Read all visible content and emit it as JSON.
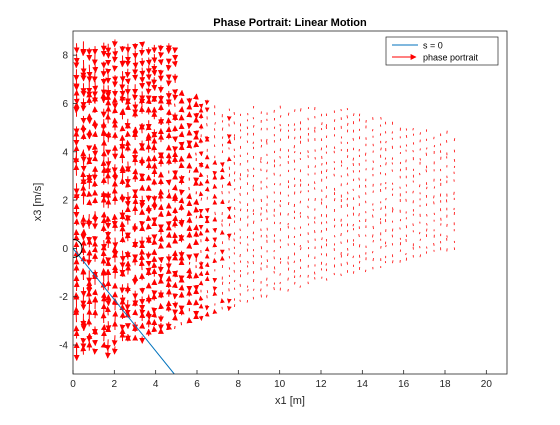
{
  "chart_data": {
    "type": "quiver",
    "title": "Phase Portrait: Linear Motion",
    "xlabel": "x1 [m]",
    "ylabel": "x3 [m/s]",
    "xlim": [
      0,
      21
    ],
    "ylim": [
      -5.2,
      9
    ],
    "xticks": [
      "0",
      "2",
      "4",
      "6",
      "8",
      "10",
      "12",
      "14",
      "16",
      "18",
      "20"
    ],
    "yticks": [
      "-4",
      "-2",
      "0",
      "2",
      "4",
      "6",
      "8"
    ],
    "grid": false,
    "legend": {
      "placement": "top-right",
      "entries": [
        "s = 0",
        "phase portrait"
      ]
    },
    "series": [
      {
        "name": "s = 0",
        "kind": "line",
        "color": "#0072BD",
        "x": [
          0,
          4.9
        ],
        "y": [
          0,
          -5.2
        ]
      },
      {
        "name": "phase portrait",
        "kind": "quiver",
        "color": "#FF0000",
        "x_range": [
          0,
          18.7
        ],
        "y_range": [
          -4.5,
          8.6
        ],
        "note_shape": "arrows shorten and fade to dots as x1 grows"
      }
    ],
    "annotations": [
      {
        "kind": "circle-marker",
        "x": 0,
        "y": 0
      }
    ]
  },
  "colors": {
    "axis": "#262626",
    "line": "#0072BD",
    "arrows": "#FF0000"
  }
}
